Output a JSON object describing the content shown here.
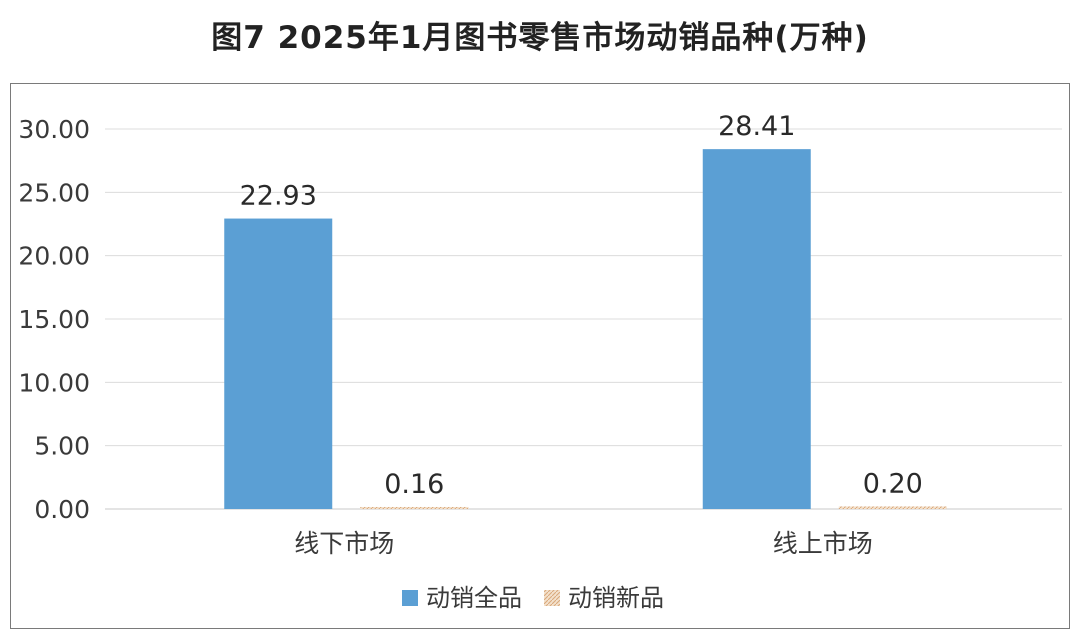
{
  "chart_data": {
    "type": "bar",
    "title": "图7  2025年1月图书零售市场动销品种(万种)",
    "categories": [
      "线下市场",
      "线上市场"
    ],
    "series": [
      {
        "name": "动销全品",
        "values": [
          22.93,
          28.41
        ],
        "color": "#5b9fd4"
      },
      {
        "name": "动销新品",
        "values": [
          0.16,
          0.2
        ],
        "color": "#e8c9a8"
      }
    ],
    "data_labels": [
      "22.93",
      "28.41",
      "0.16",
      "0.20"
    ],
    "y_ticks": [
      "0.00",
      "5.00",
      "10.00",
      "15.00",
      "20.00",
      "25.00",
      "30.00"
    ],
    "ylim": [
      0,
      30
    ],
    "grid": true,
    "legend": "bottom-center"
  }
}
